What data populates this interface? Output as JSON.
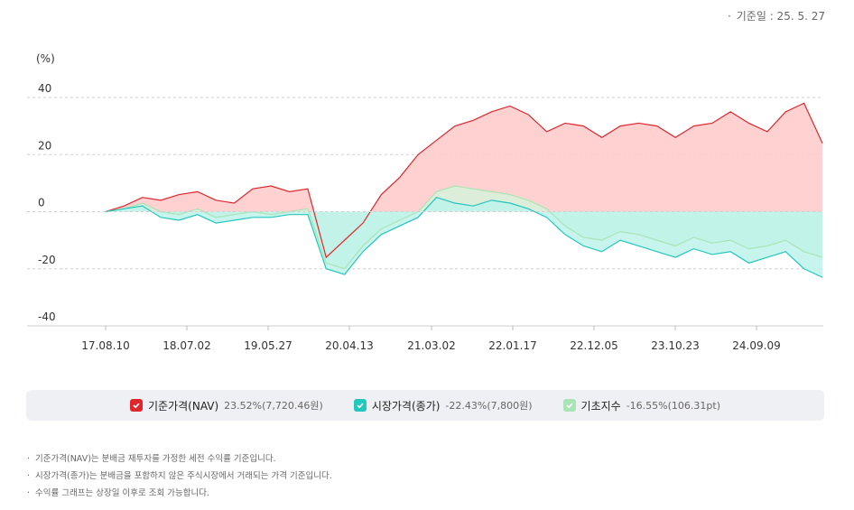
{
  "base_date": "기준일 : 25. 5. 27",
  "legend": [
    {
      "name": "기준가격(NAV)",
      "value": "23.52%(7,720.46원)",
      "color": "#e0262b"
    },
    {
      "name": "시장가격(종가)",
      "value": "-22.43%(7,800원)",
      "color": "#22c7bd"
    },
    {
      "name": "기초지수",
      "value": "-16.55%(106.31pt)",
      "color": "#a9e4b4"
    }
  ],
  "notes": [
    "기준가격(NAV)는 분배금 재투자를 가정한 세전 수익률 기준입니다.",
    "시장가격(종가)는 분배금을 포함하지 않은 주식시장에서 거래되는 가격 기준입니다.",
    "수익률 그래프는 상장일 이후로 조회 가능합니다."
  ],
  "chart_data": {
    "type": "area",
    "ylabel": "(%)",
    "ylim": [
      -40,
      40
    ],
    "yticks": [
      "40",
      "20",
      "0",
      "-20",
      "-40"
    ],
    "xticks": [
      "17.08.10",
      "18.07.02",
      "19.05.27",
      "20.04.13",
      "21.03.02",
      "22.01.17",
      "22.12.05",
      "23.10.23",
      "24.09.09"
    ],
    "x": [
      "17.08.10",
      "17.10",
      "18.01",
      "18.04",
      "18.07.02",
      "18.10",
      "19.01",
      "19.03",
      "19.05.27",
      "19.08",
      "19.11",
      "20.02",
      "20.03",
      "20.04.13",
      "20.06",
      "20.09",
      "20.11",
      "21.01",
      "21.03.02",
      "21.05",
      "21.07",
      "21.09",
      "21.11",
      "22.01.17",
      "22.03",
      "22.06",
      "22.09",
      "22.12.05",
      "23.02",
      "23.05",
      "23.08",
      "23.10.23",
      "24.01",
      "24.03",
      "24.06",
      "24.09.09",
      "24.11",
      "25.01",
      "25.03",
      "25.05"
    ],
    "series": [
      {
        "name": "기준가격(NAV)",
        "color": "#e0262b",
        "fill": "#ffc9c9",
        "values": [
          0,
          2,
          5,
          4,
          6,
          7,
          4,
          3,
          8,
          9,
          7,
          8,
          -16,
          -10,
          -4,
          6,
          12,
          20,
          25,
          30,
          32,
          35,
          37,
          34,
          28,
          31,
          30,
          26,
          30,
          31,
          30,
          26,
          30,
          31,
          35,
          31,
          28,
          35,
          38,
          24
        ]
      },
      {
        "name": "시장가격(종가)",
        "color": "#22c7bd",
        "fill": "#bdf2ea",
        "values": [
          0,
          1,
          2,
          -2,
          -3,
          -1,
          -4,
          -3,
          -2,
          -2,
          -1,
          -1,
          -20,
          -22,
          -14,
          -8,
          -5,
          -2,
          5,
          3,
          2,
          4,
          3,
          1,
          -2,
          -8,
          -12,
          -14,
          -10,
          -12,
          -14,
          -16,
          -13,
          -15,
          -14,
          -18,
          -16,
          -14,
          -20,
          -23
        ]
      },
      {
        "name": "기초지수",
        "color": "#a9e4b4",
        "fill": "#d6f2dc",
        "values": [
          0,
          1,
          3,
          0,
          -1,
          1,
          -2,
          -1,
          0,
          -1,
          0,
          1,
          -18,
          -20,
          -12,
          -6,
          -3,
          0,
          7,
          9,
          8,
          7,
          6,
          4,
          1,
          -5,
          -9,
          -10,
          -7,
          -8,
          -10,
          -12,
          -9,
          -11,
          -10,
          -13,
          -12,
          -10,
          -14,
          -16
        ]
      }
    ]
  }
}
